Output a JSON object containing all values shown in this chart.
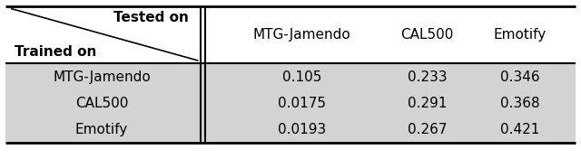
{
  "header_row": [
    "MTG-Jamendo",
    "CAL500",
    "Emotify"
  ],
  "row_labels": [
    "MTG-Jamendo",
    "CAL500",
    "Emotify"
  ],
  "values": [
    [
      "0.105",
      "0.233",
      "0.346"
    ],
    [
      "0.0175",
      "0.291",
      "0.368"
    ],
    [
      "0.0193",
      "0.267",
      "0.421"
    ]
  ],
  "col_header_top": "Tested on",
  "row_header_left": "Trained on",
  "row_bg_color": "#d3d3d3",
  "header_bg_color": "#ffffff",
  "divider_color": "#000000",
  "text_color": "#000000",
  "fig_bg_color": "#ffffff",
  "figsize": [
    6.4,
    1.76
  ],
  "dpi": 100
}
